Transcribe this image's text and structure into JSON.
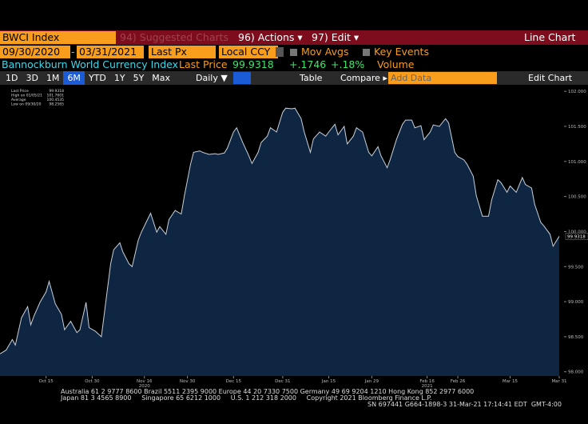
{
  "toolbar": {
    "security": "BWCI Index",
    "suggested": "94) Suggested Charts",
    "actions": "96) Actions ▾",
    "edit": "97) Edit ▾",
    "chart_type_label": "Line Chart"
  },
  "settings_bar": {
    "start": "09/30/2020",
    "dash": "-",
    "end": "03/31/2021",
    "field": "Last Px",
    "currency": "Local CCY",
    "mov_avgs": "Mov Avgs",
    "key_events": "Key Events"
  },
  "quote_bar": {
    "name": "Bannockburn World Currency Index",
    "last_label": "Last Price",
    "last": "99.9318",
    "change": "+.1746",
    "pct": "+.18%",
    "volume": "Volume"
  },
  "range_bar": {
    "ranges": [
      "1D",
      "3D",
      "1M",
      "6M",
      "YTD",
      "1Y",
      "5Y",
      "Max"
    ],
    "frequency": "Daily ▼",
    "table": "Table",
    "compare": "Compare ▸",
    "add_data": "Add Data",
    "edit_chart": "Edit Chart"
  },
  "chart_data": {
    "type": "area",
    "x": [
      "2020-09-30",
      "2020-10-02",
      "2020-10-04",
      "2020-10-05",
      "2020-10-07",
      "2020-10-09",
      "2020-10-10",
      "2020-10-11",
      "2020-10-13",
      "2020-10-15",
      "2020-10-16",
      "2020-10-18",
      "2020-10-20",
      "2020-10-21",
      "2020-10-23",
      "2020-10-25",
      "2020-10-26",
      "2020-10-28",
      "2020-10-29",
      "2020-10-31",
      "2020-11-02",
      "2020-11-03",
      "2020-11-05",
      "2020-11-06",
      "2020-11-08",
      "2020-11-09",
      "2020-11-11",
      "2020-11-12",
      "2020-11-14",
      "2020-11-15",
      "2020-11-17",
      "2020-11-18",
      "2020-11-20",
      "2020-11-21",
      "2020-11-23",
      "2020-11-24",
      "2020-11-26",
      "2020-11-28",
      "2020-11-29",
      "2020-12-01",
      "2020-12-02",
      "2020-12-04",
      "2020-12-05",
      "2020-12-07",
      "2020-12-09",
      "2020-12-10",
      "2020-12-12",
      "2020-12-13",
      "2020-12-15",
      "2020-12-16",
      "2020-12-18",
      "2020-12-20",
      "2020-12-21",
      "2020-12-23",
      "2020-12-24",
      "2020-12-26",
      "2020-12-27",
      "2020-12-29",
      "2020-12-31",
      "2021-01-01",
      "2021-01-03",
      "2021-01-04",
      "2021-01-06",
      "2021-01-07",
      "2021-01-09",
      "2021-01-10",
      "2021-01-12",
      "2021-01-14",
      "2021-01-15",
      "2021-01-17",
      "2021-01-18",
      "2021-01-20",
      "2021-01-21",
      "2021-01-23",
      "2021-01-24",
      "2021-01-26",
      "2021-01-28",
      "2021-01-29",
      "2021-01-31",
      "2021-02-01",
      "2021-02-03",
      "2021-02-04",
      "2021-02-06",
      "2021-02-08",
      "2021-02-09",
      "2021-02-11",
      "2021-02-12",
      "2021-02-14",
      "2021-02-15",
      "2021-02-17",
      "2021-02-18",
      "2021-02-20",
      "2021-02-22",
      "2021-02-23",
      "2021-02-25",
      "2021-02-26",
      "2021-02-28",
      "2021-03-01",
      "2021-03-03",
      "2021-03-04",
      "2021-03-06",
      "2021-03-08",
      "2021-03-09",
      "2021-03-11",
      "2021-03-12",
      "2021-03-14",
      "2021-03-15",
      "2021-03-17",
      "2021-03-19",
      "2021-03-20",
      "2021-03-22",
      "2021-03-23",
      "2021-03-25",
      "2021-03-26",
      "2021-03-28",
      "2021-03-29",
      "2021-03-31"
    ],
    "series": [
      {
        "name": "Last Price",
        "color": "#c9d1dc",
        "fill": "#0f2642",
        "values": [
          98.2565,
          98.31,
          98.46,
          98.38,
          98.77,
          98.93,
          98.67,
          98.79,
          98.99,
          99.14,
          99.29,
          98.97,
          98.82,
          98.6,
          98.72,
          98.56,
          98.6,
          98.99,
          98.63,
          98.58,
          98.5,
          98.85,
          99.54,
          99.74,
          99.84,
          99.71,
          99.54,
          99.5,
          99.88,
          99.99,
          100.17,
          100.26,
          99.99,
          100.07,
          99.96,
          100.17,
          100.3,
          100.25,
          100.51,
          100.96,
          101.13,
          101.15,
          101.13,
          101.1,
          101.11,
          101.1,
          101.12,
          101.19,
          101.42,
          101.48,
          101.27,
          101.08,
          100.97,
          101.13,
          101.27,
          101.36,
          101.48,
          101.42,
          101.7,
          101.7601,
          101.75,
          101.76,
          101.61,
          101.42,
          101.13,
          101.32,
          101.42,
          101.36,
          101.42,
          101.53,
          101.38,
          101.5,
          101.25,
          101.36,
          101.48,
          101.42,
          101.13,
          101.08,
          101.21,
          101.08,
          100.91,
          101.03,
          101.31,
          101.53,
          101.59,
          101.59,
          101.48,
          101.51,
          101.31,
          101.42,
          101.52,
          101.5,
          101.61,
          101.55,
          101.13,
          101.07,
          101.02,
          100.96,
          100.79,
          100.51,
          100.22,
          100.22,
          100.45,
          100.74,
          100.7,
          100.56,
          100.65,
          100.56,
          100.77,
          100.67,
          100.62,
          100.39,
          100.13,
          100.08,
          99.96,
          99.79,
          99.9318
        ]
      }
    ],
    "xlim": [
      "2020-09-30",
      "2021-03-31"
    ],
    "xticks": [
      {
        "value": "2020-10-15",
        "label": "Oct 15"
      },
      {
        "value": "2020-10-30",
        "label": "Oct 30"
      },
      {
        "value": "2020-11-16",
        "label": "Nov 16"
      },
      {
        "value": "2020-11-30",
        "label": "Nov 30"
      },
      {
        "value": "2020-12-15",
        "label": "Dec 15"
      },
      {
        "value": "2020-12-31",
        "label": "Dec 31"
      },
      {
        "value": "2021-01-15",
        "label": "Jan 15"
      },
      {
        "value": "2021-01-29",
        "label": "Jan 29"
      },
      {
        "value": "2021-02-16",
        "label": "Feb 16"
      },
      {
        "value": "2021-02-26",
        "label": "Feb 26"
      },
      {
        "value": "2021-03-15",
        "label": "Mar 15"
      },
      {
        "value": "2021-03-31",
        "label": "Mar 31"
      }
    ],
    "x_year_labels": [
      {
        "value": "2020-11-16",
        "label": "2020"
      },
      {
        "value": "2021-02-16",
        "label": "2021"
      }
    ],
    "ylim": [
      97.94,
      102.07
    ],
    "yticks": [
      {
        "value": 98,
        "label": "98.000"
      },
      {
        "value": 98.5,
        "label": "98.500"
      },
      {
        "value": 99,
        "label": "99.000"
      },
      {
        "value": 99.5,
        "label": "99.500"
      },
      {
        "value": 100,
        "label": "100.000"
      },
      {
        "value": 100.5,
        "label": "100.500"
      },
      {
        "value": 101,
        "label": "101.000"
      },
      {
        "value": 101.5,
        "label": "101.500"
      },
      {
        "value": 102,
        "label": "102.000"
      }
    ],
    "legend": [
      {
        "label": "Last Price",
        "value": "99.9318"
      },
      {
        "label": "High on 01/05/21",
        "value": "101.7601"
      },
      {
        "label": "Average",
        "value": "100.4535"
      },
      {
        "label": "Low on 09/30/20",
        "value": "98.2565"
      }
    ],
    "last_value_label": "99.9318"
  },
  "footer": {
    "line1": "Australia 61 2 9777 8600 Brazil 5511 2395 9000 Europe 44 20 7330 7500 Germany 49 69 9204 1210 Hong Kong 852 2977 6000",
    "line2": "Japan 81 3 4565 8900     Singapore 65 6212 1000     U.S. 1 212 318 2000     Copyright 2021 Bloomberg Finance L.P.",
    "line3": "SN 697441 G664-1898-3 31-Mar-21 17:14:41 EDT  GMT-4:00"
  }
}
